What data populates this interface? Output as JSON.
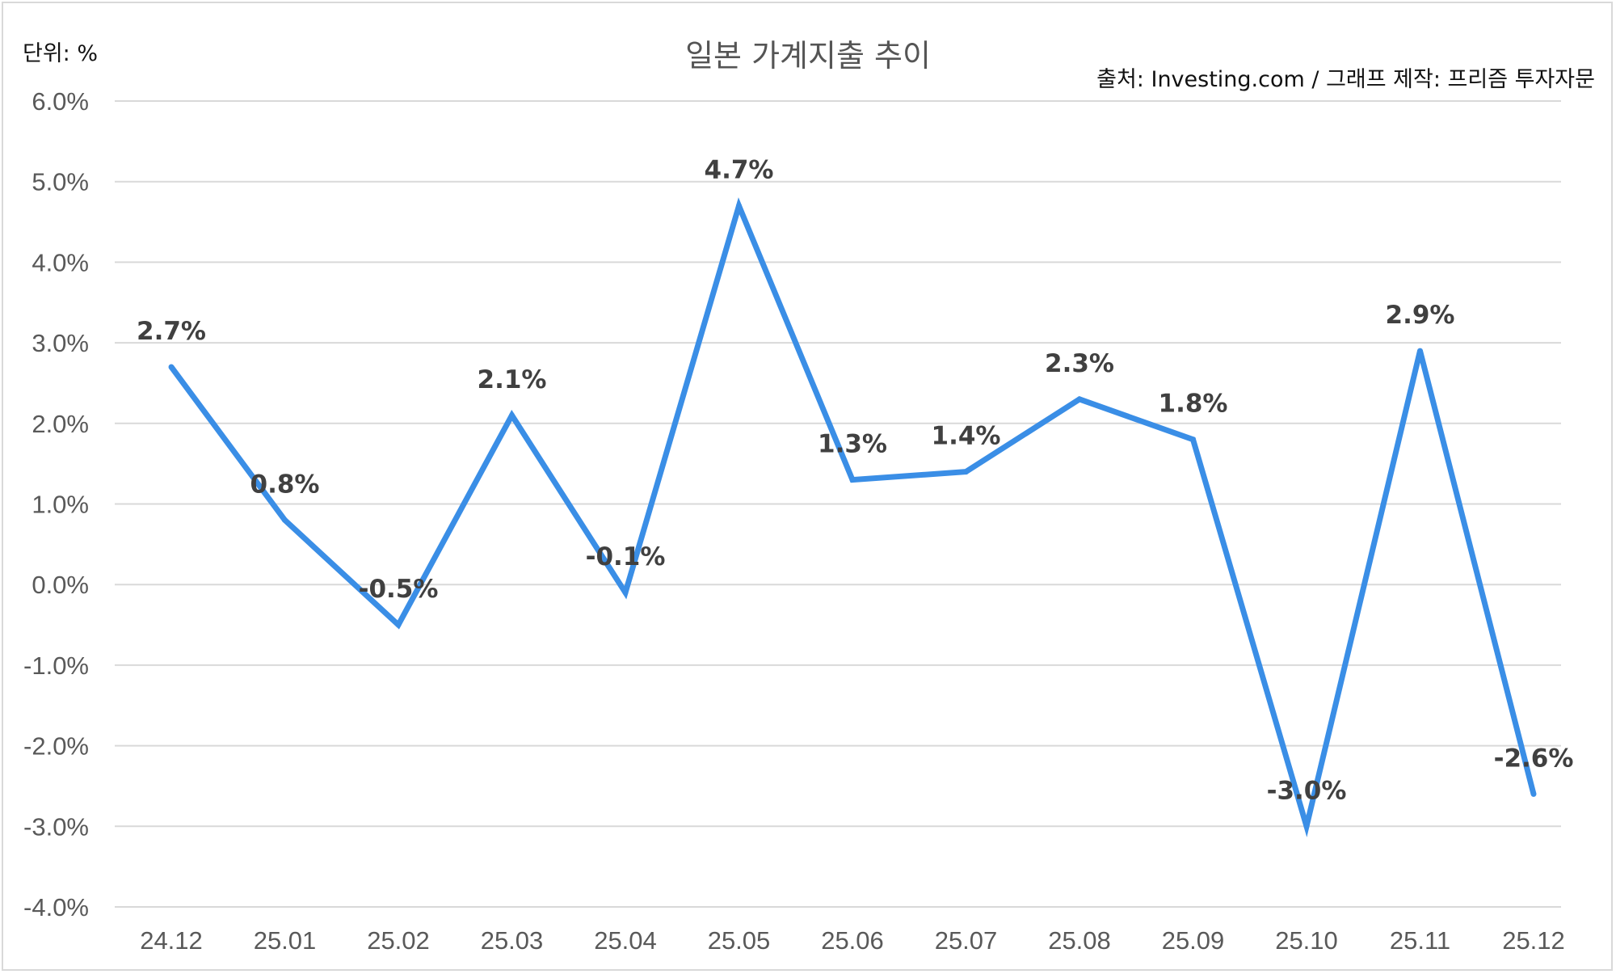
{
  "header": {
    "title": "일본 가계지출 추이",
    "unit": "단위: %",
    "source": "출처: Investing.com / 그래프 제작: 프리즘 투자자문"
  },
  "colors": {
    "line": "#3a8ee6",
    "grid": "#d9d9d9",
    "tick": "#595959",
    "label": "#404040"
  },
  "chart_data": {
    "type": "line",
    "title": "일본 가계지출 추이",
    "xlabel": "",
    "ylabel": "",
    "categories": [
      "24.12",
      "25.01",
      "25.02",
      "25.03",
      "25.04",
      "25.05",
      "25.06",
      "25.07",
      "25.08",
      "25.09",
      "25.10",
      "25.11",
      "25.12"
    ],
    "series": [
      {
        "values": [
          2.7,
          0.8,
          -0.5,
          2.1,
          -0.1,
          4.7,
          1.3,
          1.4,
          2.3,
          1.8,
          -3.0,
          2.9,
          -2.6
        ],
        "data_labels": [
          "2.7%",
          "0.8%",
          "-0.5%",
          "2.1%",
          "-0.1%",
          "4.7%",
          "1.3%",
          "1.4%",
          "2.3%",
          "1.8%",
          "-3.0%",
          "2.9%",
          "-2.6%"
        ]
      }
    ],
    "ylim": [
      -4,
      6
    ],
    "y_ticks": [
      6,
      5,
      4,
      3,
      2,
      1,
      0,
      -1,
      -2,
      -3,
      -4
    ],
    "y_tick_labels": [
      "6.0%",
      "5.0%",
      "4.0%",
      "3.0%",
      "2.0%",
      "1.0%",
      "0.0%",
      "-1.0%",
      "-2.0%",
      "-3.0%",
      "-4.0%"
    ],
    "grid": true,
    "legend": "none"
  }
}
